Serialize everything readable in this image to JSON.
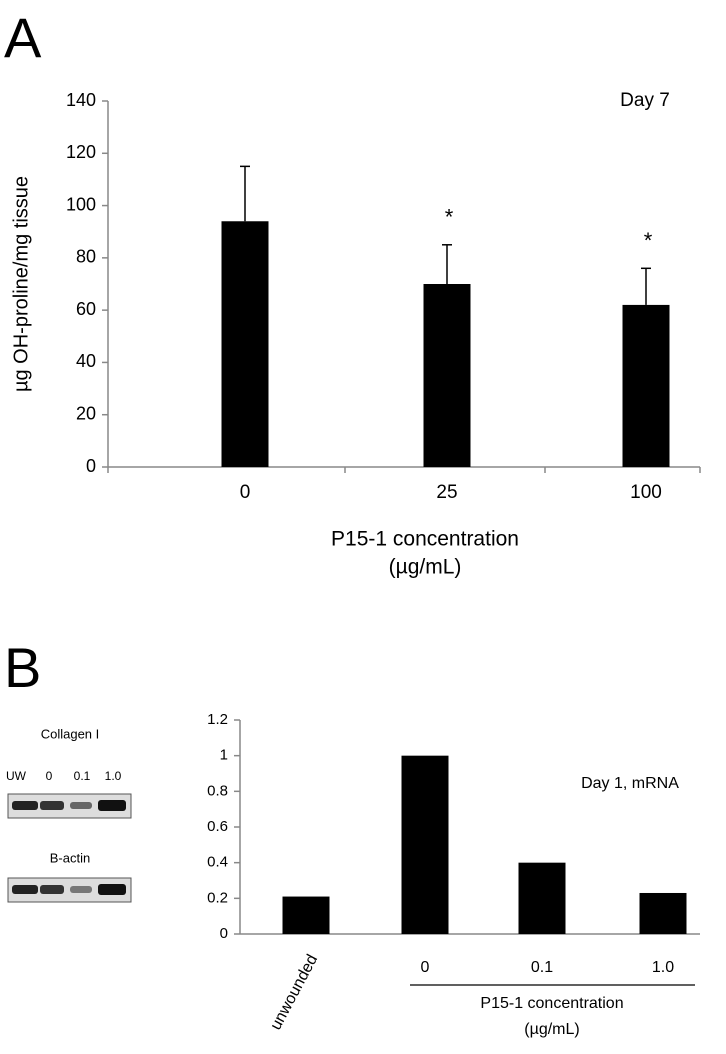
{
  "panels": [
    "A",
    "B"
  ],
  "blot": {
    "title": "Collagen I",
    "lanes": [
      "UW",
      "0",
      "0.1",
      "1.0"
    ],
    "control": "B-actin"
  },
  "chart_data": [
    {
      "type": "bar",
      "categories": [
        "0",
        "25",
        "100"
      ],
      "values": [
        94,
        70,
        62
      ],
      "errors": [
        21,
        15,
        14
      ],
      "significance": [
        null,
        "*",
        "*"
      ],
      "color": "#000000",
      "ylabel": "µg OH-proline/mg tissue",
      "xlabel": [
        "P15-1 concentration",
        "(µg/mL)"
      ],
      "annotation": "Day 7",
      "ylim": [
        0,
        140
      ],
      "yticks": [
        0,
        20,
        40,
        60,
        80,
        100,
        120,
        140
      ]
    },
    {
      "type": "bar",
      "categories": [
        "unwounded",
        "0",
        "0.1",
        "1.0"
      ],
      "values": [
        0.21,
        1,
        0.4,
        0.23
      ],
      "color": "#000000",
      "group_label": [
        "P15-1 concentration",
        "(µg/mL)"
      ],
      "annotation": "Day 1, mRNA",
      "ylim": [
        0,
        1.2
      ],
      "yticks": [
        0,
        0.2,
        0.4,
        0.6,
        0.8,
        1,
        1.2
      ]
    }
  ]
}
